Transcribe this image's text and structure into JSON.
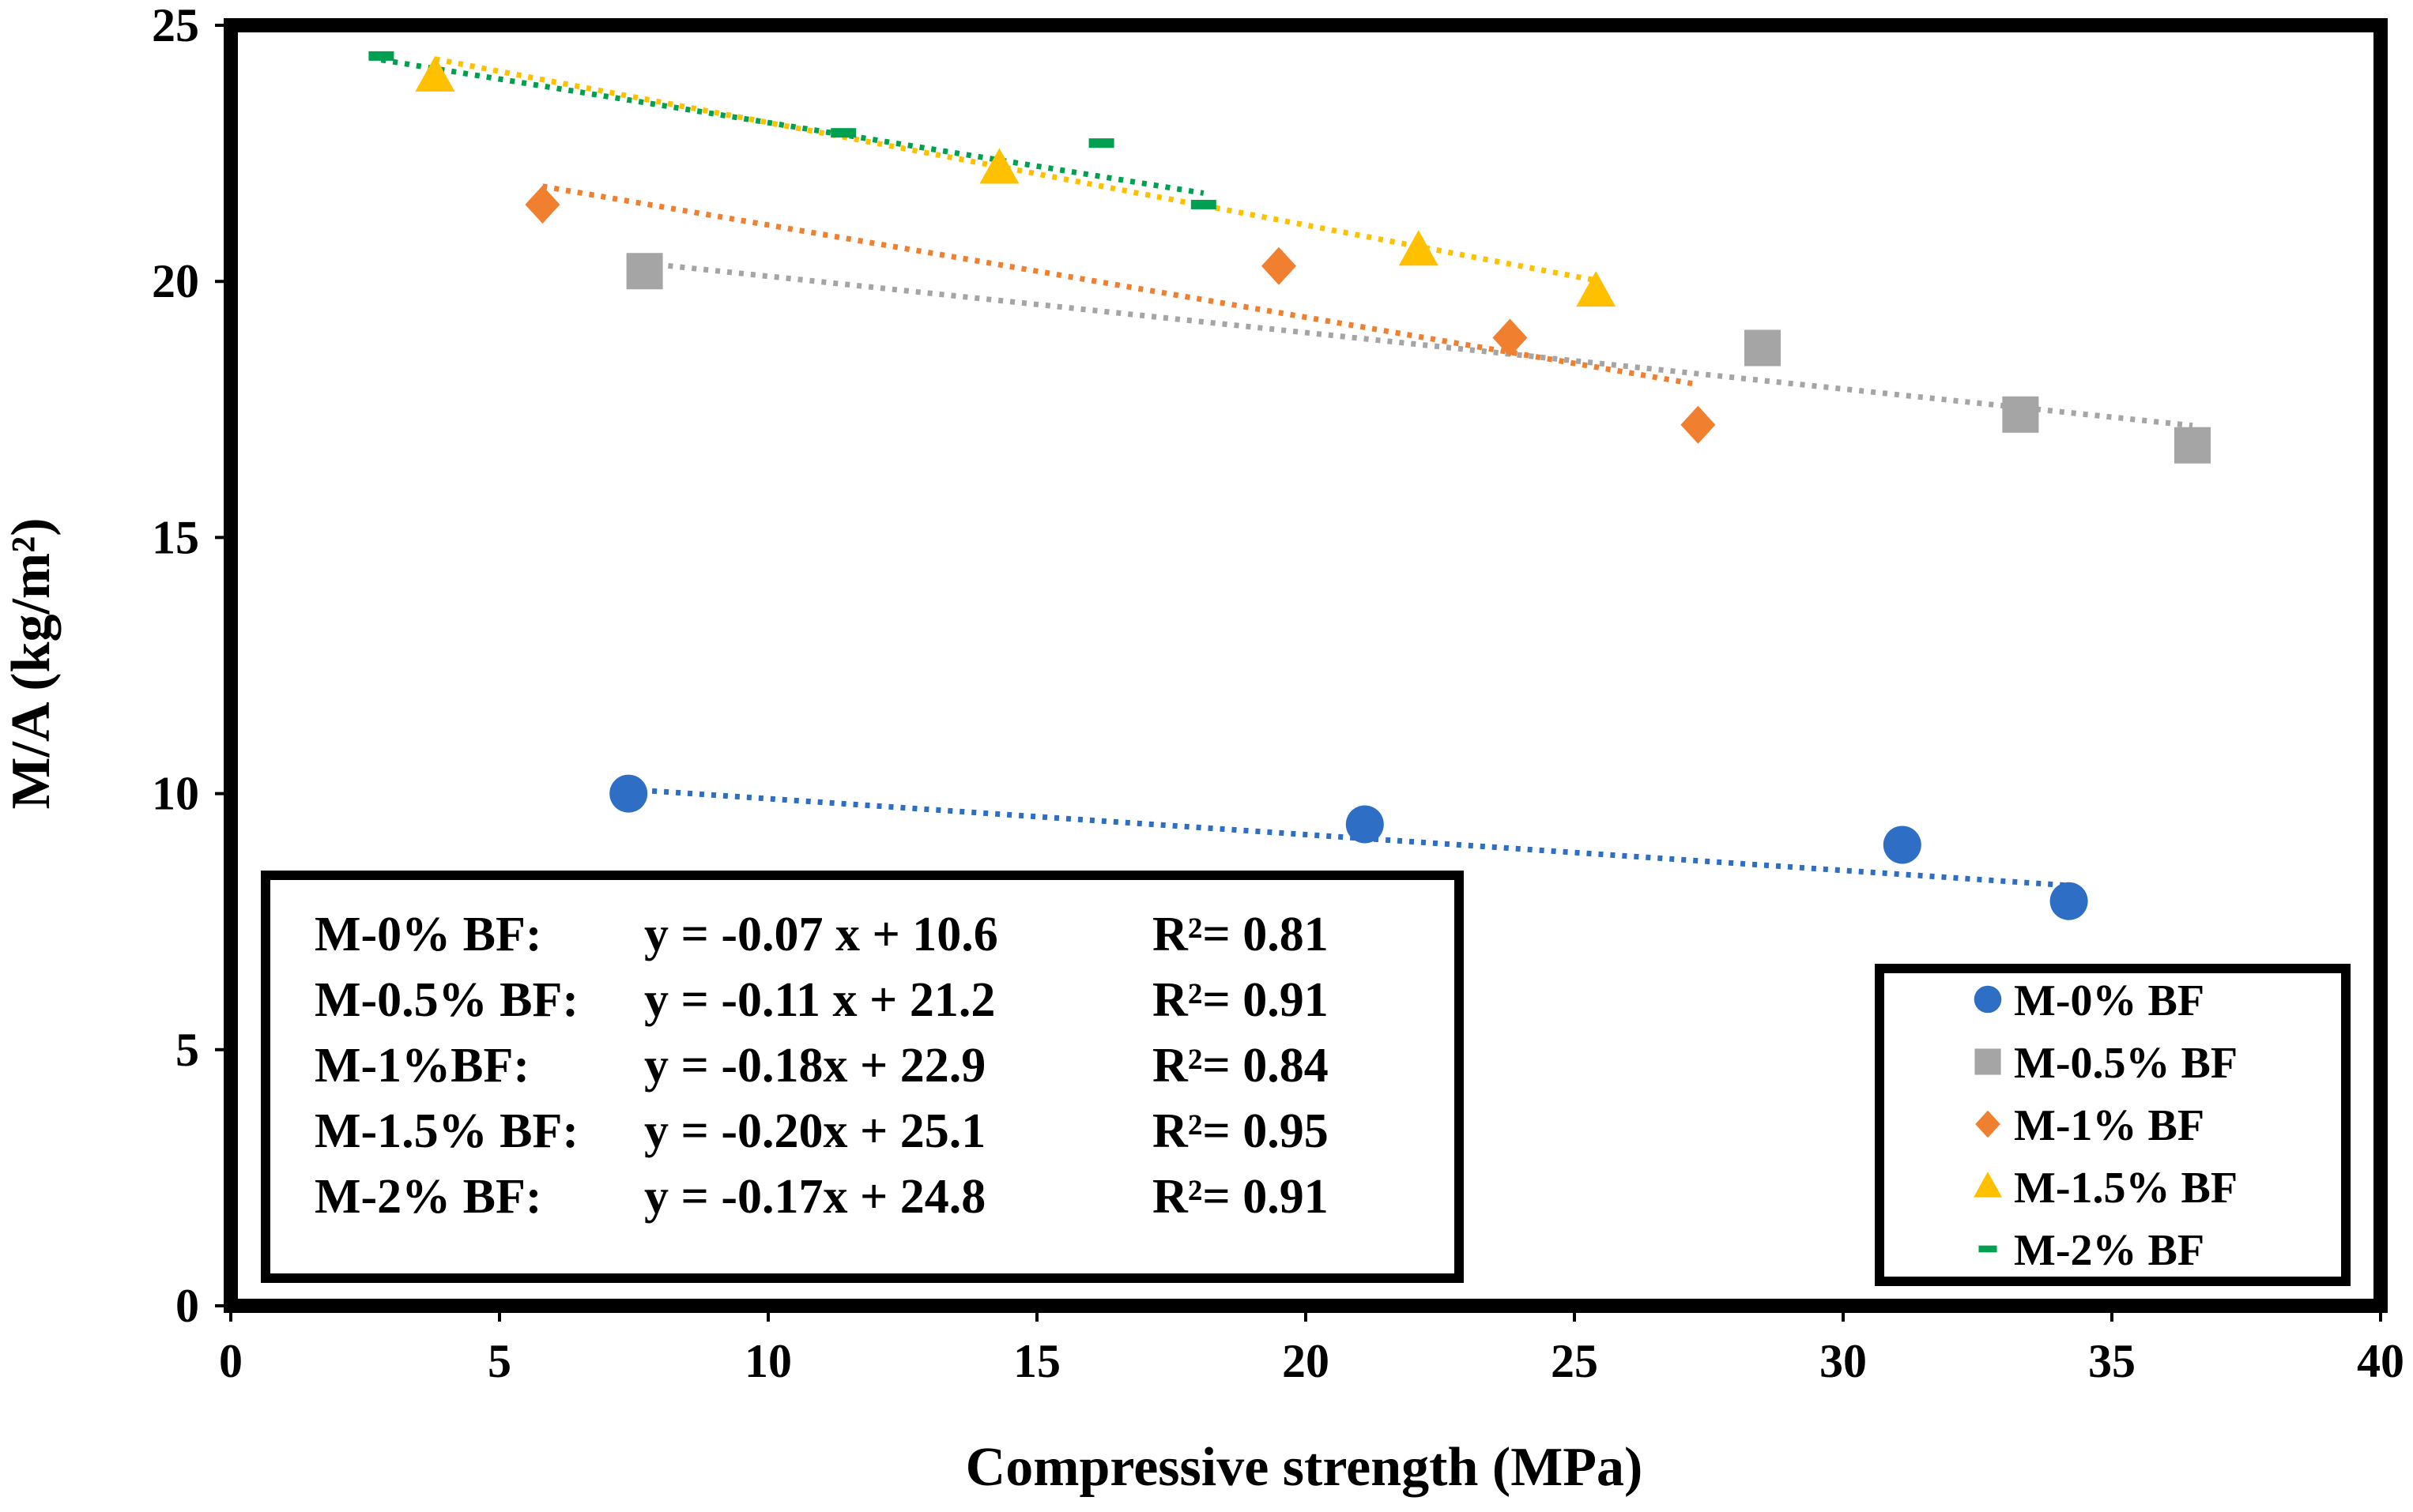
{
  "chart_data": {
    "type": "scatter",
    "title": "",
    "xlabel": "Compressive strength (MPa)",
    "ylabel": "M/A (kg/m²)",
    "xlim": [
      0,
      40
    ],
    "ylim": [
      0,
      25
    ],
    "xticks": [
      "0",
      "5",
      "10",
      "15",
      "20",
      "25",
      "30",
      "35",
      "40"
    ],
    "yticks": [
      "0",
      "5",
      "10",
      "15",
      "20",
      "25"
    ],
    "grid": false,
    "legend_position": "bottom-right",
    "series": [
      {
        "name": "M-0% BF",
        "marker": "circle",
        "color": "#2e6ec4",
        "x": [
          7.4,
          21.1,
          31.1,
          34.2
        ],
        "y": [
          10.0,
          9.4,
          9.0,
          7.9
        ],
        "trendline": {
          "x": [
            7.4,
            34.2
          ],
          "equation_label": "y = -0.07 x + 10.6",
          "r2_label": "R²= 0.81"
        }
      },
      {
        "name": "M-0.5% BF",
        "marker": "square",
        "color": "#a5a5a5",
        "x": [
          7.7,
          28.5,
          33.3,
          36.5
        ],
        "y": [
          20.2,
          18.7,
          17.4,
          16.8
        ],
        "trendline": {
          "x": [
            7.7,
            36.5
          ],
          "equation_label": "y = -0.11 x + 21.2",
          "r2_label": "R²= 0.91"
        }
      },
      {
        "name": "M-1% BF",
        "marker": "diamond",
        "color": "#f07f30",
        "x": [
          5.8,
          19.5,
          23.8,
          27.3
        ],
        "y": [
          21.5,
          20.3,
          18.9,
          17.2
        ],
        "trendline": {
          "x": [
            5.8,
            27.3
          ],
          "equation_label": "y = -0.18x + 22.9",
          "r2_label": "R²= 0.84"
        }
      },
      {
        "name": "M-1.5% BF",
        "marker": "triangle",
        "color": "#ffc000",
        "x": [
          3.8,
          14.3,
          22.1,
          25.4
        ],
        "y": [
          24.0,
          22.2,
          20.6,
          19.8
        ],
        "trendline": {
          "x": [
            3.8,
            25.4
          ],
          "equation_label": "y = -0.20x + 25.1",
          "r2_label": "R²= 0.95"
        }
      },
      {
        "name": "M-2% BF",
        "marker": "dash",
        "color": "#00a050",
        "x": [
          2.8,
          11.4,
          16.2,
          18.1
        ],
        "y": [
          24.4,
          22.9,
          22.7,
          21.5
        ],
        "trendline": {
          "x": [
            2.8,
            18.1
          ],
          "equation_label": "y = -0.17x + 24.8",
          "r2_label": "R²= 0.91"
        }
      }
    ],
    "equation_box": [
      {
        "name": "M-0% BF:",
        "equation": "y = -0.07 x + 10.6",
        "r2": "R²= 0.81"
      },
      {
        "name": "M-0.5% BF:",
        "equation": "y = -0.11 x + 21.2",
        "r2": "R²= 0.91"
      },
      {
        "name": "M-1%BF:",
        "equation": "y = -0.18x + 22.9",
        "r2": "R²= 0.84"
      },
      {
        "name": "M-1.5% BF:",
        "equation": "y = -0.20x + 25.1",
        "r2": "R²= 0.95"
      },
      {
        "name": "M-2% BF:",
        "equation": "y = -0.17x + 24.8",
        "r2": "R²= 0.91"
      }
    ]
  }
}
